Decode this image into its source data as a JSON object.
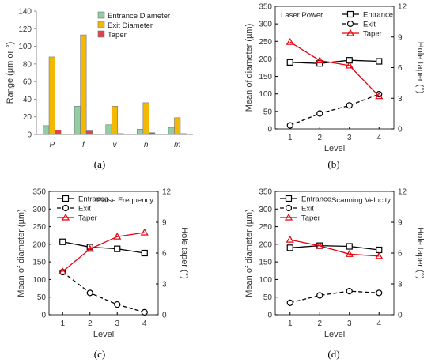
{
  "panels": [
    {
      "caption": "(a)",
      "chart_data": {
        "type": "bar",
        "categories": [
          "P",
          "f",
          "v",
          "n",
          "m"
        ],
        "ylabel": "Range (μm or °)",
        "ylim": [
          0,
          140
        ],
        "yticks": [
          0,
          20,
          40,
          60,
          80,
          100,
          120,
          140
        ],
        "legend_position": "top-right",
        "series": [
          {
            "name": "Entrance Diameter",
            "values": [
              10,
              32,
              11,
              6,
              8
            ],
            "color": "#8fcfa3"
          },
          {
            "name": "Exit Diameter",
            "values": [
              88,
              113,
              32,
              36,
              19
            ],
            "color": "#f5b800"
          },
          {
            "name": "Taper",
            "values": [
              5,
              4,
              1,
              2,
              1
            ],
            "color": "#e04050"
          }
        ]
      }
    },
    {
      "caption": "(b)",
      "chart_data": {
        "type": "line",
        "title": "Laser Power",
        "x": [
          1,
          2,
          3,
          4
        ],
        "xlabel": "Level",
        "ylabel": "Mean of diameter (µm)",
        "y2label": "Hole taper (°)",
        "ylim": [
          0,
          350
        ],
        "yticks": [
          0,
          50,
          100,
          150,
          200,
          250,
          300,
          350
        ],
        "y2lim": [
          0,
          12
        ],
        "y2ticks": [
          0,
          3,
          6,
          9,
          12
        ],
        "legend_position": "top-right",
        "series": [
          {
            "name": "Entrance",
            "axis": "left",
            "values": [
              190,
              187,
              196,
              193
            ],
            "color": "#000000",
            "marker": "square",
            "dash": false
          },
          {
            "name": "Exit",
            "axis": "left",
            "values": [
              10,
              44,
              67,
              99
            ],
            "color": "#000000",
            "marker": "circle",
            "dash": true
          },
          {
            "name": "Taper",
            "axis": "right",
            "values": [
              8.5,
              6.7,
              6.2,
              3.2
            ],
            "color": "#e8000d",
            "marker": "triangle",
            "dash": false
          }
        ]
      }
    },
    {
      "caption": "(c)",
      "chart_data": {
        "type": "line",
        "title": "Pulse Frequency",
        "x": [
          1,
          2,
          3,
          4
        ],
        "xlabel": "Level",
        "ylabel": "Mean of diameter (µm)",
        "y2label": "Hole taper (°)",
        "ylim": [
          0,
          350
        ],
        "yticks": [
          0,
          50,
          100,
          150,
          200,
          250,
          300,
          350
        ],
        "y2lim": [
          0,
          12
        ],
        "y2ticks": [
          0,
          3,
          6,
          9,
          12
        ],
        "legend_position": "top-left",
        "series": [
          {
            "name": "Entrance",
            "axis": "left",
            "values": [
              207,
              192,
              187,
              175
            ],
            "color": "#000000",
            "marker": "square",
            "dash": false
          },
          {
            "name": "Exit",
            "axis": "left",
            "values": [
              121,
              62,
              29,
              7
            ],
            "color": "#000000",
            "marker": "circle",
            "dash": true
          },
          {
            "name": "Taper",
            "axis": "right",
            "values": [
              4.2,
              6.4,
              7.6,
              8.0
            ],
            "color": "#e8000d",
            "marker": "triangle",
            "dash": false
          }
        ]
      }
    },
    {
      "caption": "(d)",
      "chart_data": {
        "type": "line",
        "title": "Scanning Velocity",
        "x": [
          1,
          2,
          3,
          4
        ],
        "xlabel": "Level",
        "ylabel": "Mean of diameter (µm)",
        "y2label": "Hole taper (°)",
        "ylim": [
          0,
          350
        ],
        "yticks": [
          0,
          50,
          100,
          150,
          200,
          250,
          300,
          350
        ],
        "y2lim": [
          0,
          12
        ],
        "y2ticks": [
          0,
          3,
          6,
          9,
          12
        ],
        "legend_position": "top-left",
        "series": [
          {
            "name": "Entrance",
            "axis": "left",
            "values": [
              190,
              196,
              194,
              184
            ],
            "color": "#000000",
            "marker": "square",
            "dash": false
          },
          {
            "name": "Exit",
            "axis": "left",
            "values": [
              34,
              55,
              67,
              62
            ],
            "color": "#000000",
            "marker": "circle",
            "dash": true
          },
          {
            "name": "Taper",
            "axis": "right",
            "values": [
              7.3,
              6.7,
              5.9,
              5.7
            ],
            "color": "#e8000d",
            "marker": "triangle",
            "dash": false
          }
        ]
      }
    }
  ]
}
